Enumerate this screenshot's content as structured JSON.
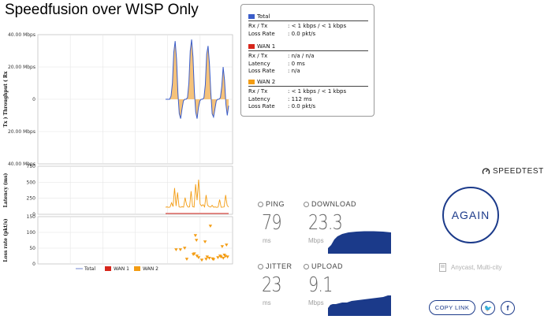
{
  "title": "Speedfusion over WISP Only",
  "chart_data": [
    {
      "type": "line",
      "ylabel": "Tx ) Throughput ( Rx",
      "y_ticks": [
        "40.00 Mbps",
        "20.00 Mbps",
        "0",
        "20.00 Mbps",
        "40.00 Mbps"
      ],
      "ylim": [
        -40,
        40
      ],
      "grid": true,
      "series": [
        {
          "name": "Total",
          "color": "#3b5dc9",
          "fill": "#f5c27a",
          "x": [
            0,
            1,
            2,
            3,
            4,
            5,
            6,
            7,
            8,
            9,
            10,
            11,
            12,
            13,
            14,
            15,
            16,
            17,
            18,
            19,
            20,
            21,
            22,
            23,
            24,
            25,
            26,
            27,
            28,
            29,
            30,
            31,
            32,
            33,
            34,
            35,
            36,
            37,
            38,
            39,
            40,
            41,
            42,
            43,
            44,
            45,
            46
          ],
          "values": [
            0,
            0,
            0,
            0,
            2,
            10,
            29,
            36,
            25,
            4,
            -9,
            -12,
            -6,
            -1,
            0,
            0,
            1,
            10,
            30,
            37,
            26,
            5,
            -8,
            -12,
            -5,
            -1,
            0,
            0,
            1,
            9,
            28,
            33,
            22,
            4,
            -9,
            -11,
            -6,
            -1,
            0,
            0,
            1,
            8,
            20,
            12,
            -3,
            -10,
            -4
          ]
        }
      ]
    },
    {
      "type": "line",
      "ylabel": "Latency (ms)",
      "y_ticks": [
        0,
        250,
        500,
        750
      ],
      "ylim": [
        0,
        750
      ],
      "grid": true,
      "series": [
        {
          "name": "WAN 2",
          "color": "#f39c12",
          "values": [
            110,
            115,
            108,
            112,
            180,
            120,
            410,
            130,
            340,
            115,
            110,
            118,
            112,
            260,
            150,
            112,
            115,
            360,
            120,
            112,
            470,
            220,
            540,
            160,
            130,
            150,
            115,
            300,
            140,
            120,
            112,
            140,
            110,
            115,
            108,
            112,
            230,
            110,
            112,
            115,
            300,
            140,
            112
          ]
        },
        {
          "name": "WAN 1",
          "color": "#d7261b",
          "values": [
            0,
            0,
            0,
            0,
            0,
            0,
            0,
            0,
            0,
            0,
            0,
            0,
            0,
            0,
            0,
            0,
            0,
            0,
            0,
            0,
            0,
            0,
            0,
            0,
            0,
            0,
            0,
            0,
            0,
            0,
            0,
            0,
            0,
            0,
            0,
            0,
            0,
            0,
            0,
            0,
            0,
            0,
            0
          ]
        }
      ]
    },
    {
      "type": "scatter",
      "ylabel": "Loss rate (pkt/s)",
      "y_ticks": [
        0,
        50,
        100,
        150
      ],
      "ylim": [
        0,
        150
      ],
      "grid": true,
      "series": [
        {
          "name": "WAN 2",
          "color": "#f39c12",
          "points": [
            [
              0.02,
              45
            ],
            [
              0.1,
              45
            ],
            [
              0.18,
              50
            ],
            [
              0.22,
              15
            ],
            [
              0.34,
              30
            ],
            [
              0.36,
              32
            ],
            [
              0.38,
              90
            ],
            [
              0.4,
              75
            ],
            [
              0.41,
              25
            ],
            [
              0.44,
              20
            ],
            [
              0.5,
              12
            ],
            [
              0.56,
              70
            ],
            [
              0.58,
              15
            ],
            [
              0.6,
              22
            ],
            [
              0.64,
              18
            ],
            [
              0.66,
              120
            ],
            [
              0.7,
              16
            ],
            [
              0.72,
              14
            ],
            [
              0.8,
              20
            ],
            [
              0.84,
              25
            ],
            [
              0.86,
              22
            ],
            [
              0.88,
              55
            ],
            [
              0.9,
              18
            ],
            [
              0.92,
              28
            ],
            [
              0.94,
              24
            ],
            [
              0.96,
              60
            ],
            [
              0.98,
              22
            ]
          ]
        }
      ]
    }
  ],
  "legend": [
    {
      "label": "Total",
      "color": "#8a9bd8"
    },
    {
      "label": "WAN 1",
      "color": "#d7261b"
    },
    {
      "label": "WAN 2",
      "color": "#f39c12"
    }
  ],
  "stats": {
    "total": {
      "title": "Total",
      "color": "#3b5dc9",
      "rows": [
        {
          "k": "Rx / Tx",
          "v": ": < 1 kbps / < 1 kbps"
        },
        {
          "k": "Loss Rate",
          "v": ": 0.0 pkt/s"
        }
      ]
    },
    "wan1": {
      "title": "WAN 1",
      "color": "#d7261b",
      "rows": [
        {
          "k": "Rx / Tx",
          "v": ": n/a / n/a"
        },
        {
          "k": "Latency",
          "v": ": 0 ms"
        },
        {
          "k": "Loss Rate",
          "v": ": n/a"
        }
      ]
    },
    "wan2": {
      "title": "WAN 2",
      "color": "#f39c12",
      "rows": [
        {
          "k": "Rx / Tx",
          "v": ": < 1 kbps / < 1 kbps"
        },
        {
          "k": "Latency",
          "v": ": 112 ms"
        },
        {
          "k": "Loss Rate",
          "v": ": 0.0 pkt/s"
        }
      ]
    }
  },
  "speedtest": {
    "brand": "SPEEDTEST",
    "ping": {
      "label": "PING",
      "value": "79",
      "unit": "ms"
    },
    "download": {
      "label": "DOWNLOAD",
      "value": "23.3",
      "unit": "Mbps",
      "graph_color": "#1b3a8a"
    },
    "jitter": {
      "label": "JITTER",
      "value": "23",
      "unit": "ms"
    },
    "upload": {
      "label": "UPLOAD",
      "value": "9.1",
      "unit": "Mbps",
      "graph_color": "#1b3a8a"
    },
    "again_label": "AGAIN",
    "server": "Anycast, Multi-city",
    "copy_link_label": "COPY LINK",
    "twitter_glyph": "🐦",
    "facebook_glyph": "f"
  }
}
